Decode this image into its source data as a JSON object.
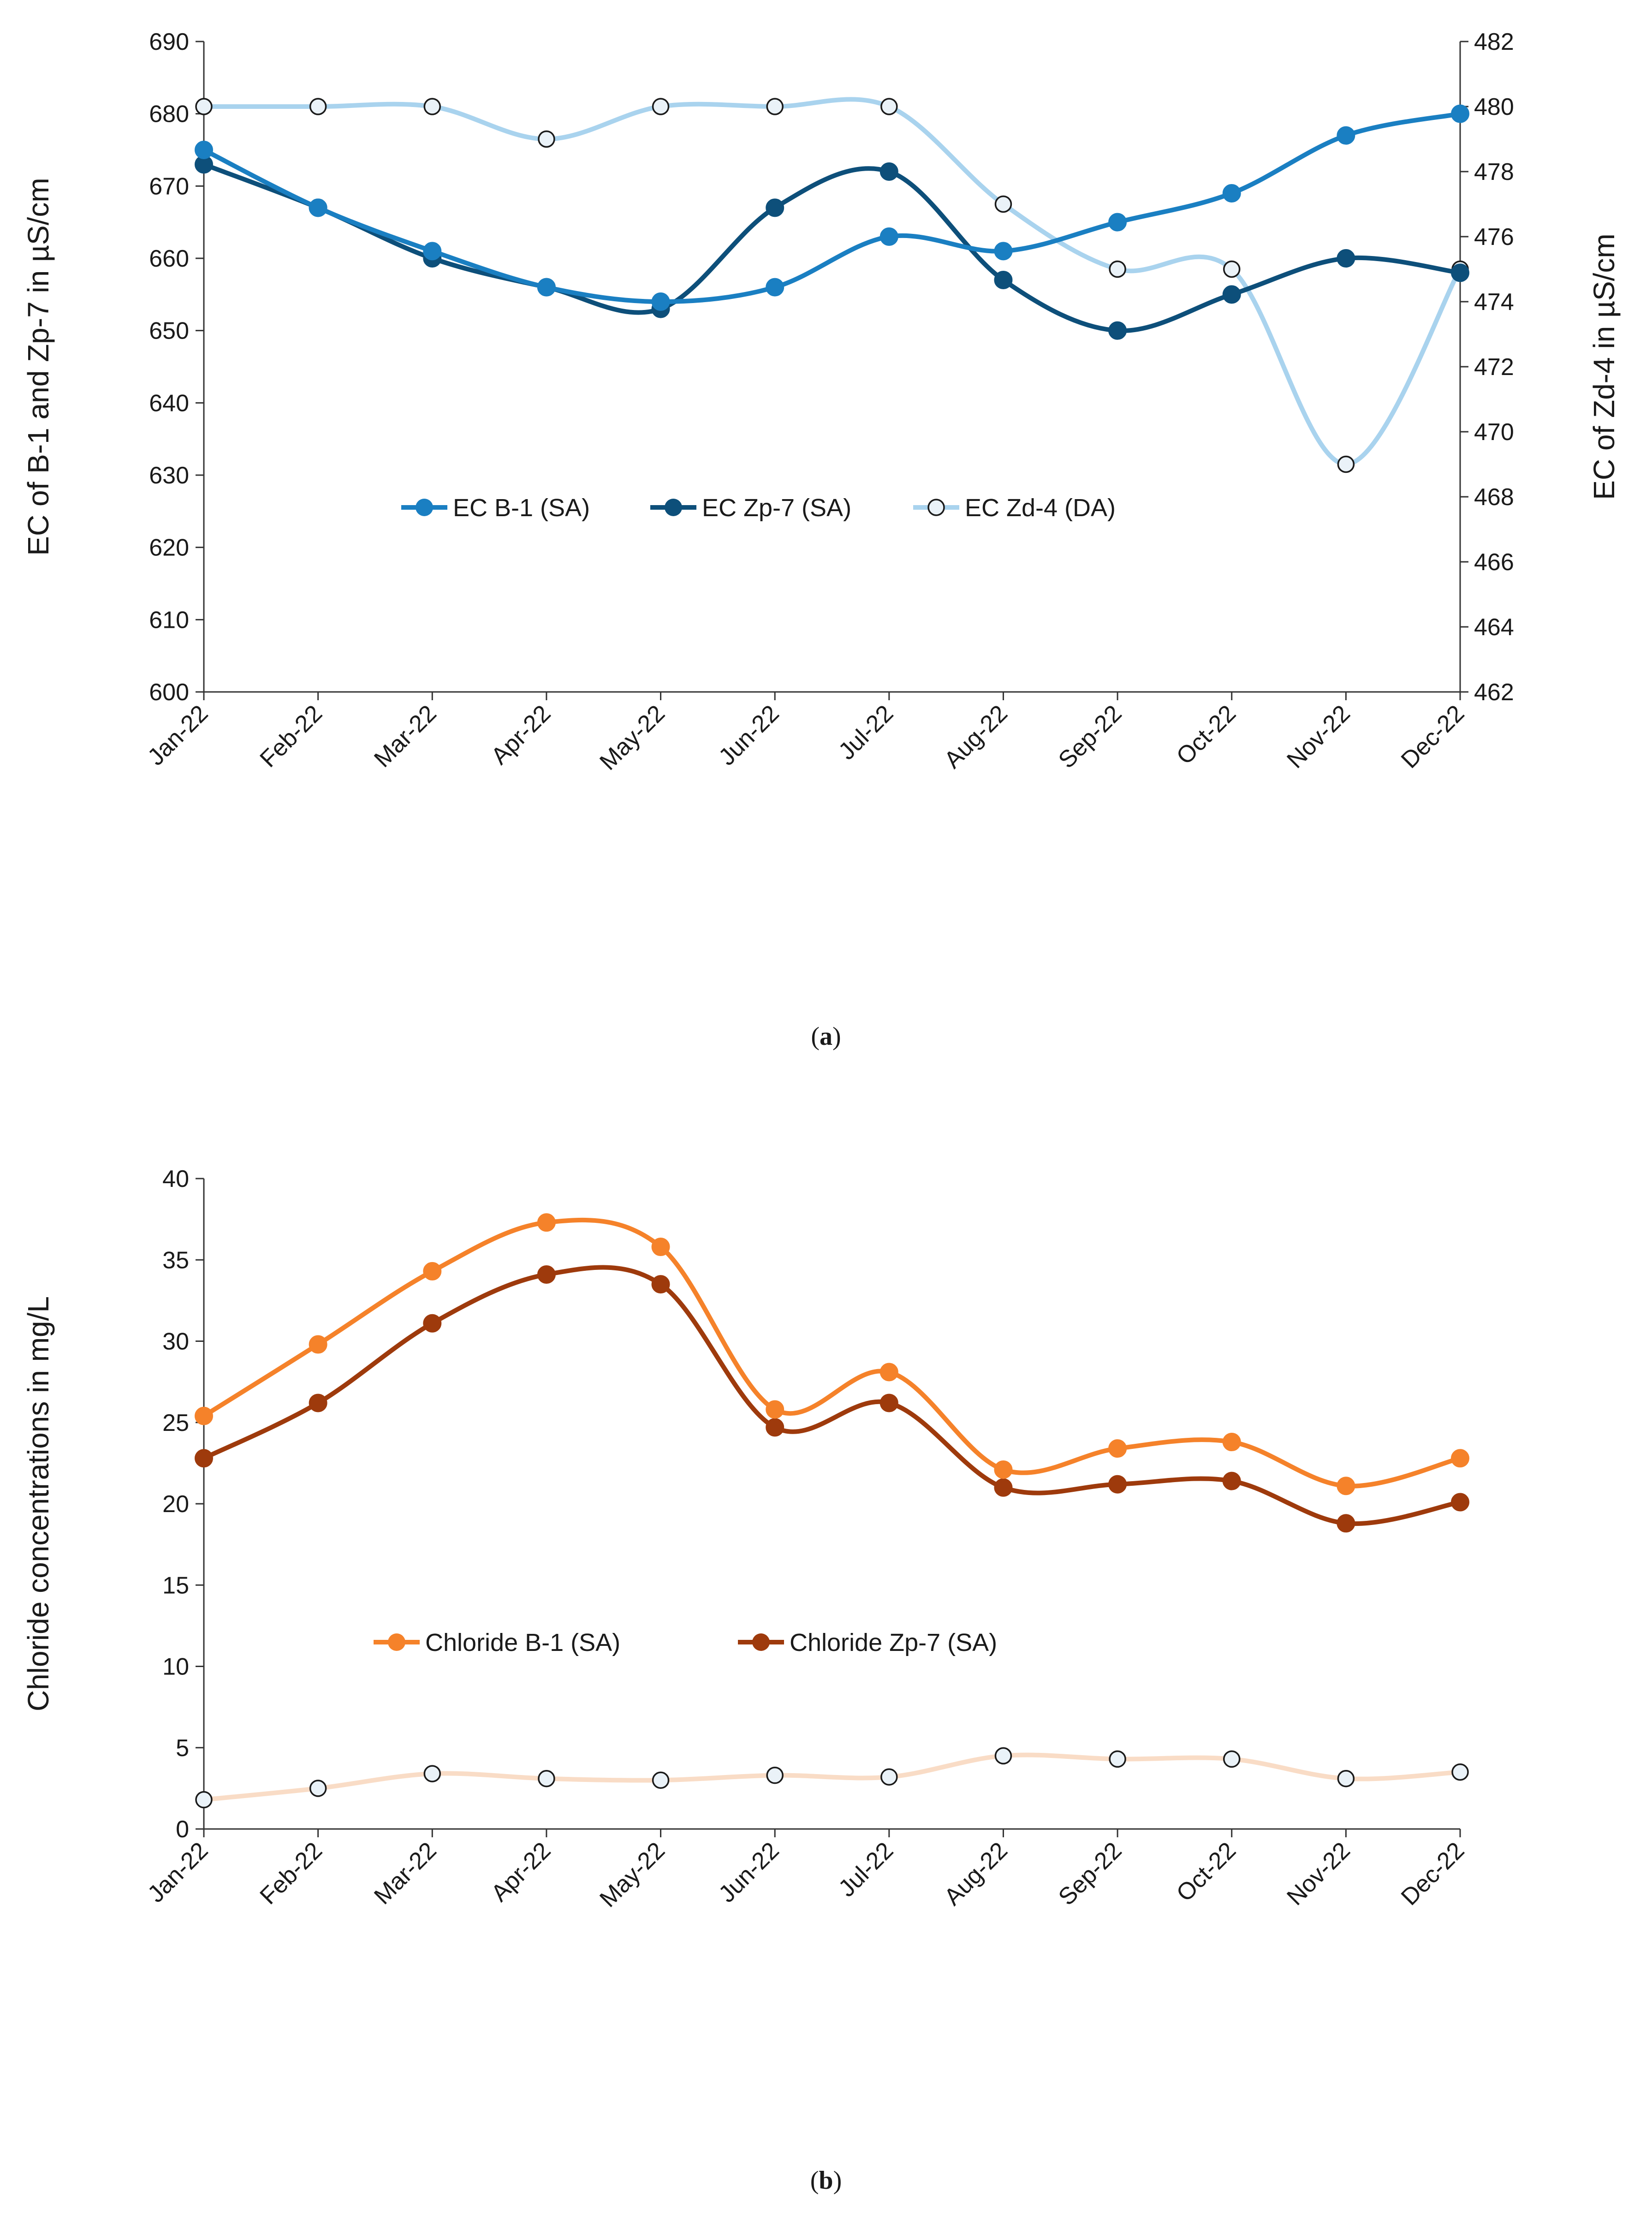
{
  "chart_data": [
    {
      "type": "line",
      "panel_label": "a",
      "categories": [
        "Jan-22",
        "Feb-22",
        "Mar-22",
        "Apr-22",
        "May-22",
        "Jun-22",
        "Jul-22",
        "Aug-22",
        "Sep-22",
        "Oct-22",
        "Nov-22",
        "Dec-22"
      ],
      "ylabel": "EC of B-1 and Zp-7  in µS/cm",
      "y2label": "EC of Zd-4 in µS/cm",
      "ylim": [
        600,
        690
      ],
      "yticks": [
        600,
        610,
        620,
        630,
        640,
        650,
        660,
        670,
        680,
        690
      ],
      "y2lim": [
        462,
        482
      ],
      "y2ticks": [
        462,
        464,
        466,
        468,
        470,
        472,
        474,
        476,
        478,
        480,
        482
      ],
      "legend_position": "center",
      "grid": false,
      "series": [
        {
          "name": "EC B-1 (SA)",
          "axis": "left",
          "color": "#1a7fc2",
          "marker": "filled",
          "values": [
            675,
            667,
            661,
            656,
            654,
            656,
            663,
            661,
            665,
            669,
            677,
            680
          ]
        },
        {
          "name": "EC Zp-7 (SA)",
          "axis": "left",
          "color": "#0d4f7a",
          "marker": "filled",
          "values": [
            673,
            667,
            660,
            656,
            653,
            667,
            672,
            657,
            650,
            655,
            660,
            658
          ]
        },
        {
          "name": "EC Zd-4 (DA)",
          "axis": "right",
          "color": "#a9d3ee",
          "marker": "hollow",
          "values": [
            480,
            480,
            480,
            479,
            480,
            480,
            480,
            477,
            475,
            475,
            469,
            475
          ]
        }
      ]
    },
    {
      "type": "line",
      "panel_label": "b",
      "categories": [
        "Jan-22",
        "Feb-22",
        "Mar-22",
        "Apr-22",
        "May-22",
        "Jun-22",
        "Jul-22",
        "Aug-22",
        "Sep-22",
        "Oct-22",
        "Nov-22",
        "Dec-22"
      ],
      "ylabel": "Chloride concentrations in mg/L",
      "ylim": [
        0,
        40
      ],
      "yticks": [
        0,
        5,
        10,
        15,
        20,
        25,
        30,
        35,
        40
      ],
      "legend_position": "center",
      "grid": false,
      "series": [
        {
          "name": "Chloride B-1 (SA)",
          "color": "#f5822a",
          "marker": "filled",
          "values": [
            25.4,
            29.8,
            34.3,
            37.3,
            35.8,
            25.8,
            28.1,
            22.1,
            23.4,
            23.8,
            21.1,
            22.8
          ]
        },
        {
          "name": "Chloride Zp-7 (SA)",
          "color": "#9e3a0c",
          "marker": "filled",
          "values": [
            22.8,
            26.2,
            31.1,
            34.1,
            33.5,
            24.7,
            26.2,
            21.0,
            21.2,
            21.4,
            18.8,
            20.1
          ]
        },
        {
          "name": "",
          "color": "#f9dcc6",
          "marker": "hollow",
          "values": [
            1.8,
            2.5,
            3.4,
            3.1,
            3.0,
            3.3,
            3.2,
            4.5,
            4.3,
            4.3,
            3.1,
            3.5
          ]
        }
      ]
    }
  ]
}
